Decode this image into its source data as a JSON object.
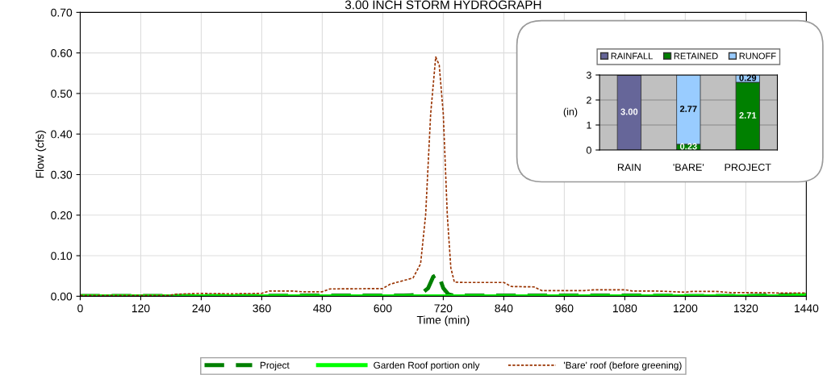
{
  "chart_data": [
    {
      "type": "line",
      "title": "3.00 INCH STORM HYDROGRAPH",
      "xlabel": "Time (min)",
      "ylabel": "Flow (cfs)",
      "xlim": [
        0,
        1440
      ],
      "xticks": [
        0,
        120,
        240,
        360,
        480,
        600,
        720,
        840,
        960,
        1080,
        1200,
        1320,
        1440
      ],
      "ylim": [
        0,
        0.7
      ],
      "yticks": [
        {
          "value": 0,
          "label": "0.00"
        },
        {
          "value": 0.1,
          "label": "0.10"
        },
        {
          "value": 0.2,
          "label": "0.20"
        },
        {
          "value": 0.3,
          "label": "0.30"
        },
        {
          "value": 0.4,
          "label": "0.40"
        },
        {
          "value": 0.5,
          "label": "0.50"
        },
        {
          "value": 0.6,
          "label": "0.60"
        },
        {
          "value": 0.7,
          "label": "0.70"
        }
      ],
      "grid": true,
      "legend": "bottom",
      "marker": "none",
      "series": [
        {
          "name": "Project",
          "color": "#008000",
          "line_style": "dashed",
          "x": [
            0,
            120,
            240,
            360,
            480,
            600,
            640,
            670,
            680,
            690,
            700,
            710,
            720,
            730,
            740,
            840,
            960,
            1080,
            1200,
            1320,
            1440
          ],
          "values": [
            0.001,
            0.001,
            0.001,
            0.001,
            0.002,
            0.002,
            0.002,
            0.003,
            0.01,
            0.02,
            0.048,
            0.055,
            0.02,
            0.005,
            0.002,
            0.002,
            0.002,
            0.002,
            0.001,
            0.001,
            0.003
          ]
        },
        {
          "name": "Garden Roof portion only",
          "color": "#00ff00",
          "line_style": "solid",
          "x": [
            0,
            360,
            720,
            1080,
            1400,
            1440
          ],
          "values": [
            0,
            0,
            0,
            0,
            0,
            0.003
          ]
        },
        {
          "name": "'Bare' roof (before greening)",
          "color": "#993300",
          "line_style": "dotted",
          "x": [
            0,
            60,
            120,
            175,
            190,
            240,
            300,
            360,
            375,
            420,
            440,
            480,
            495,
            600,
            615,
            630,
            660,
            675,
            685,
            695,
            705,
            712,
            720,
            728,
            735,
            742,
            760,
            840,
            855,
            900,
            915,
            1000,
            1020,
            1080,
            1095,
            1140,
            1200,
            1215,
            1260,
            1290,
            1320,
            1350,
            1380,
            1440
          ],
          "values": [
            0.002,
            0.002,
            0.002,
            0.002,
            0.005,
            0.007,
            0.006,
            0.007,
            0.013,
            0.013,
            0.011,
            0.011,
            0.018,
            0.019,
            0.03,
            0.035,
            0.045,
            0.08,
            0.2,
            0.45,
            0.59,
            0.57,
            0.45,
            0.2,
            0.07,
            0.035,
            0.034,
            0.034,
            0.024,
            0.023,
            0.014,
            0.014,
            0.016,
            0.016,
            0.013,
            0.013,
            0.01,
            0.012,
            0.012,
            0.009,
            0.009,
            0.009,
            0.008,
            0.008
          ]
        }
      ]
    },
    {
      "type": "bar",
      "stacked": true,
      "ylabel": "(in)",
      "categories": [
        "RAIN",
        "'BARE'",
        "PROJECT"
      ],
      "ylim": [
        0,
        3
      ],
      "yticks": [
        0,
        1,
        2,
        3
      ],
      "grid": "y",
      "legend": "top",
      "series": [
        {
          "name": "RAINFALL",
          "color": "#666699",
          "values": [
            3.0,
            null,
            null
          ],
          "value_labels": [
            "3.00",
            null,
            null
          ]
        },
        {
          "name": "RETAINED",
          "color": "#008000",
          "values": [
            null,
            0.23,
            2.71
          ],
          "value_labels": [
            null,
            "0.23",
            "2.71"
          ]
        },
        {
          "name": "RUNOFF",
          "color": "#99ccff",
          "values": [
            null,
            2.77,
            0.29
          ],
          "value_labels": [
            null,
            "2.77",
            "0.29"
          ]
        }
      ]
    }
  ]
}
